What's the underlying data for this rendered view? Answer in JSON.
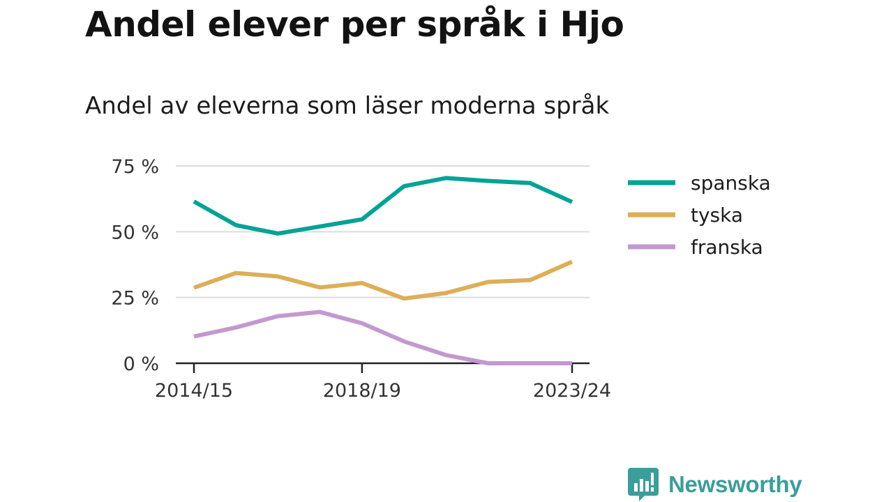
{
  "title": "Andel elever per språk i Hjo",
  "subtitle": "Andel av eleverna som läser moderna språk",
  "brand": {
    "name": "Newsworthy",
    "icon": "newsworthy-logo-icon",
    "color": "#3a9e9a"
  },
  "chart_data": {
    "type": "line",
    "x": [
      "2014/15",
      "2015/16",
      "2016/17",
      "2017/18",
      "2018/19",
      "2019/20",
      "2020/21",
      "2021/22",
      "2022/23",
      "2023/24"
    ],
    "x_tick_labels": [
      "2014/15",
      "2018/19",
      "2023/24"
    ],
    "y_ticks": [
      0,
      25,
      50,
      75
    ],
    "y_tick_labels": [
      "0 %",
      "25 %",
      "50 %",
      "75 %"
    ],
    "ylim": [
      0,
      75
    ],
    "grid": true,
    "legend_position": "right",
    "series": [
      {
        "name": "spanska",
        "color": "#00a396",
        "values": [
          61.5,
          52.5,
          49.3,
          52.0,
          54.7,
          67.3,
          70.4,
          69.3,
          68.5,
          61.3
        ]
      },
      {
        "name": "tyska",
        "color": "#ddae58",
        "values": [
          28.7,
          34.3,
          33.0,
          28.8,
          30.5,
          24.6,
          26.7,
          30.9,
          31.6,
          38.6
        ]
      },
      {
        "name": "franska",
        "color": "#c299cf",
        "values": [
          10.2,
          13.6,
          17.9,
          19.5,
          15.2,
          8.3,
          3.1,
          0.0,
          0.0,
          0.0
        ]
      }
    ]
  }
}
